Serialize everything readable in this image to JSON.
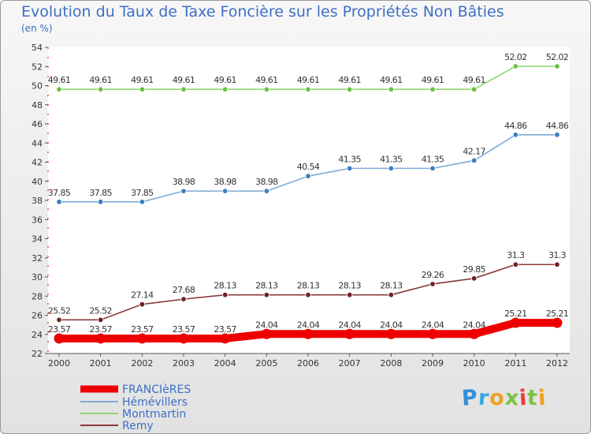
{
  "header": {
    "title": "Evolution du Taux de Taxe Foncière sur les Propriétés Non Bâties",
    "unit": "(en %)"
  },
  "logo": {
    "text": "Proxiti",
    "letters": [
      "P",
      "r",
      "o",
      "x",
      "i",
      "t",
      "i"
    ],
    "colors": [
      "#2f8fd8",
      "#3aa7e0",
      "#f0a020",
      "#7cc242",
      "#e83e3e",
      "#7cc242",
      "#f0a020"
    ]
  },
  "chart_data": {
    "type": "line",
    "categories": [
      "2000",
      "2001",
      "2002",
      "2003",
      "2004",
      "2005",
      "2006",
      "2007",
      "2008",
      "2009",
      "2010",
      "2011",
      "2012"
    ],
    "ylim": [
      22,
      54
    ],
    "yticks": [
      22,
      24,
      26,
      28,
      30,
      32,
      34,
      36,
      38,
      40,
      42,
      44,
      46,
      48,
      50,
      52,
      54
    ],
    "grid": false,
    "legend_position": "bottom-left",
    "series": [
      {
        "name": "FRANCIèRES",
        "color": "#ee0000",
        "marker_color": "#ee0000",
        "values": [
          23.57,
          23.57,
          23.57,
          23.57,
          23.57,
          24.04,
          24.04,
          24.04,
          24.04,
          24.04,
          24.04,
          25.21,
          25.21
        ],
        "labels": [
          "23.57",
          "23.57",
          "23.57",
          "23.57",
          "23.57",
          "24.04",
          "24.04",
          "24.04",
          "24.04",
          "24.04",
          "24.04",
          "25.21",
          "25.21"
        ]
      },
      {
        "name": "Hémévillers",
        "color": "#7fa9d6",
        "marker_color": "#3d7ec0",
        "values": [
          37.85,
          37.85,
          37.85,
          38.98,
          38.98,
          38.98,
          40.54,
          41.35,
          41.35,
          41.35,
          42.17,
          44.86,
          44.86
        ],
        "labels": [
          "37.85",
          "37.85",
          "37.85",
          "38.98",
          "38.98",
          "38.98",
          "40.54",
          "41.35",
          "41.35",
          "41.35",
          "42.17",
          "44.86",
          "44.86"
        ]
      },
      {
        "name": "Montmartin",
        "color": "#8fd56a",
        "marker_color": "#6cc040",
        "values": [
          49.61,
          49.61,
          49.61,
          49.61,
          49.61,
          49.61,
          49.61,
          49.61,
          49.61,
          49.61,
          49.61,
          52.02,
          52.02
        ],
        "labels": [
          "49.61",
          "49.61",
          "49.61",
          "49.61",
          "49.61",
          "49.61",
          "49.61",
          "49.61",
          "49.61",
          "49.61",
          "49.61",
          "52.02",
          "52.02"
        ]
      },
      {
        "name": "Remy",
        "color": "#8a3a3a",
        "marker_color": "#6e2323",
        "values": [
          25.52,
          25.52,
          27.14,
          27.68,
          28.13,
          28.13,
          28.13,
          28.13,
          28.13,
          29.26,
          29.85,
          31.3,
          31.3
        ],
        "labels": [
          "25.52",
          "25.52",
          "27.14",
          "27.68",
          "28.13",
          "28.13",
          "28.13",
          "28.13",
          "28.13",
          "29.26",
          "29.85",
          "31.3",
          "31.3"
        ]
      }
    ]
  }
}
